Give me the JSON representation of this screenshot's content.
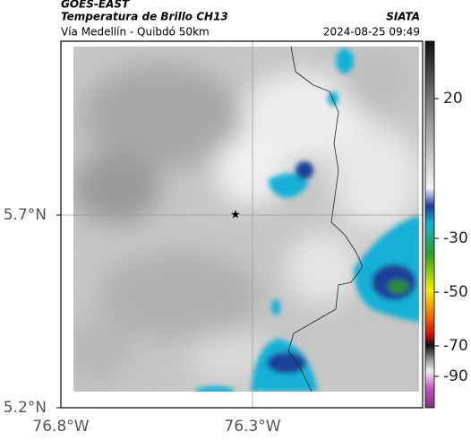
{
  "header": {
    "source": "GOES-EAST",
    "title": "Temperatura de Brillo CH13",
    "subtitle": "Vía Medellín - Quibdó 50km",
    "brand": "SIATA",
    "timestamp": "2024-08-25 09:49"
  },
  "map": {
    "lat_labels": [
      "5.7°N",
      "5.2°N"
    ],
    "lon_labels": [
      "76.8°W",
      "76.3°W"
    ]
  },
  "colorbar": {
    "ticks": [
      20,
      -30,
      -50,
      -70,
      -90
    ]
  }
}
